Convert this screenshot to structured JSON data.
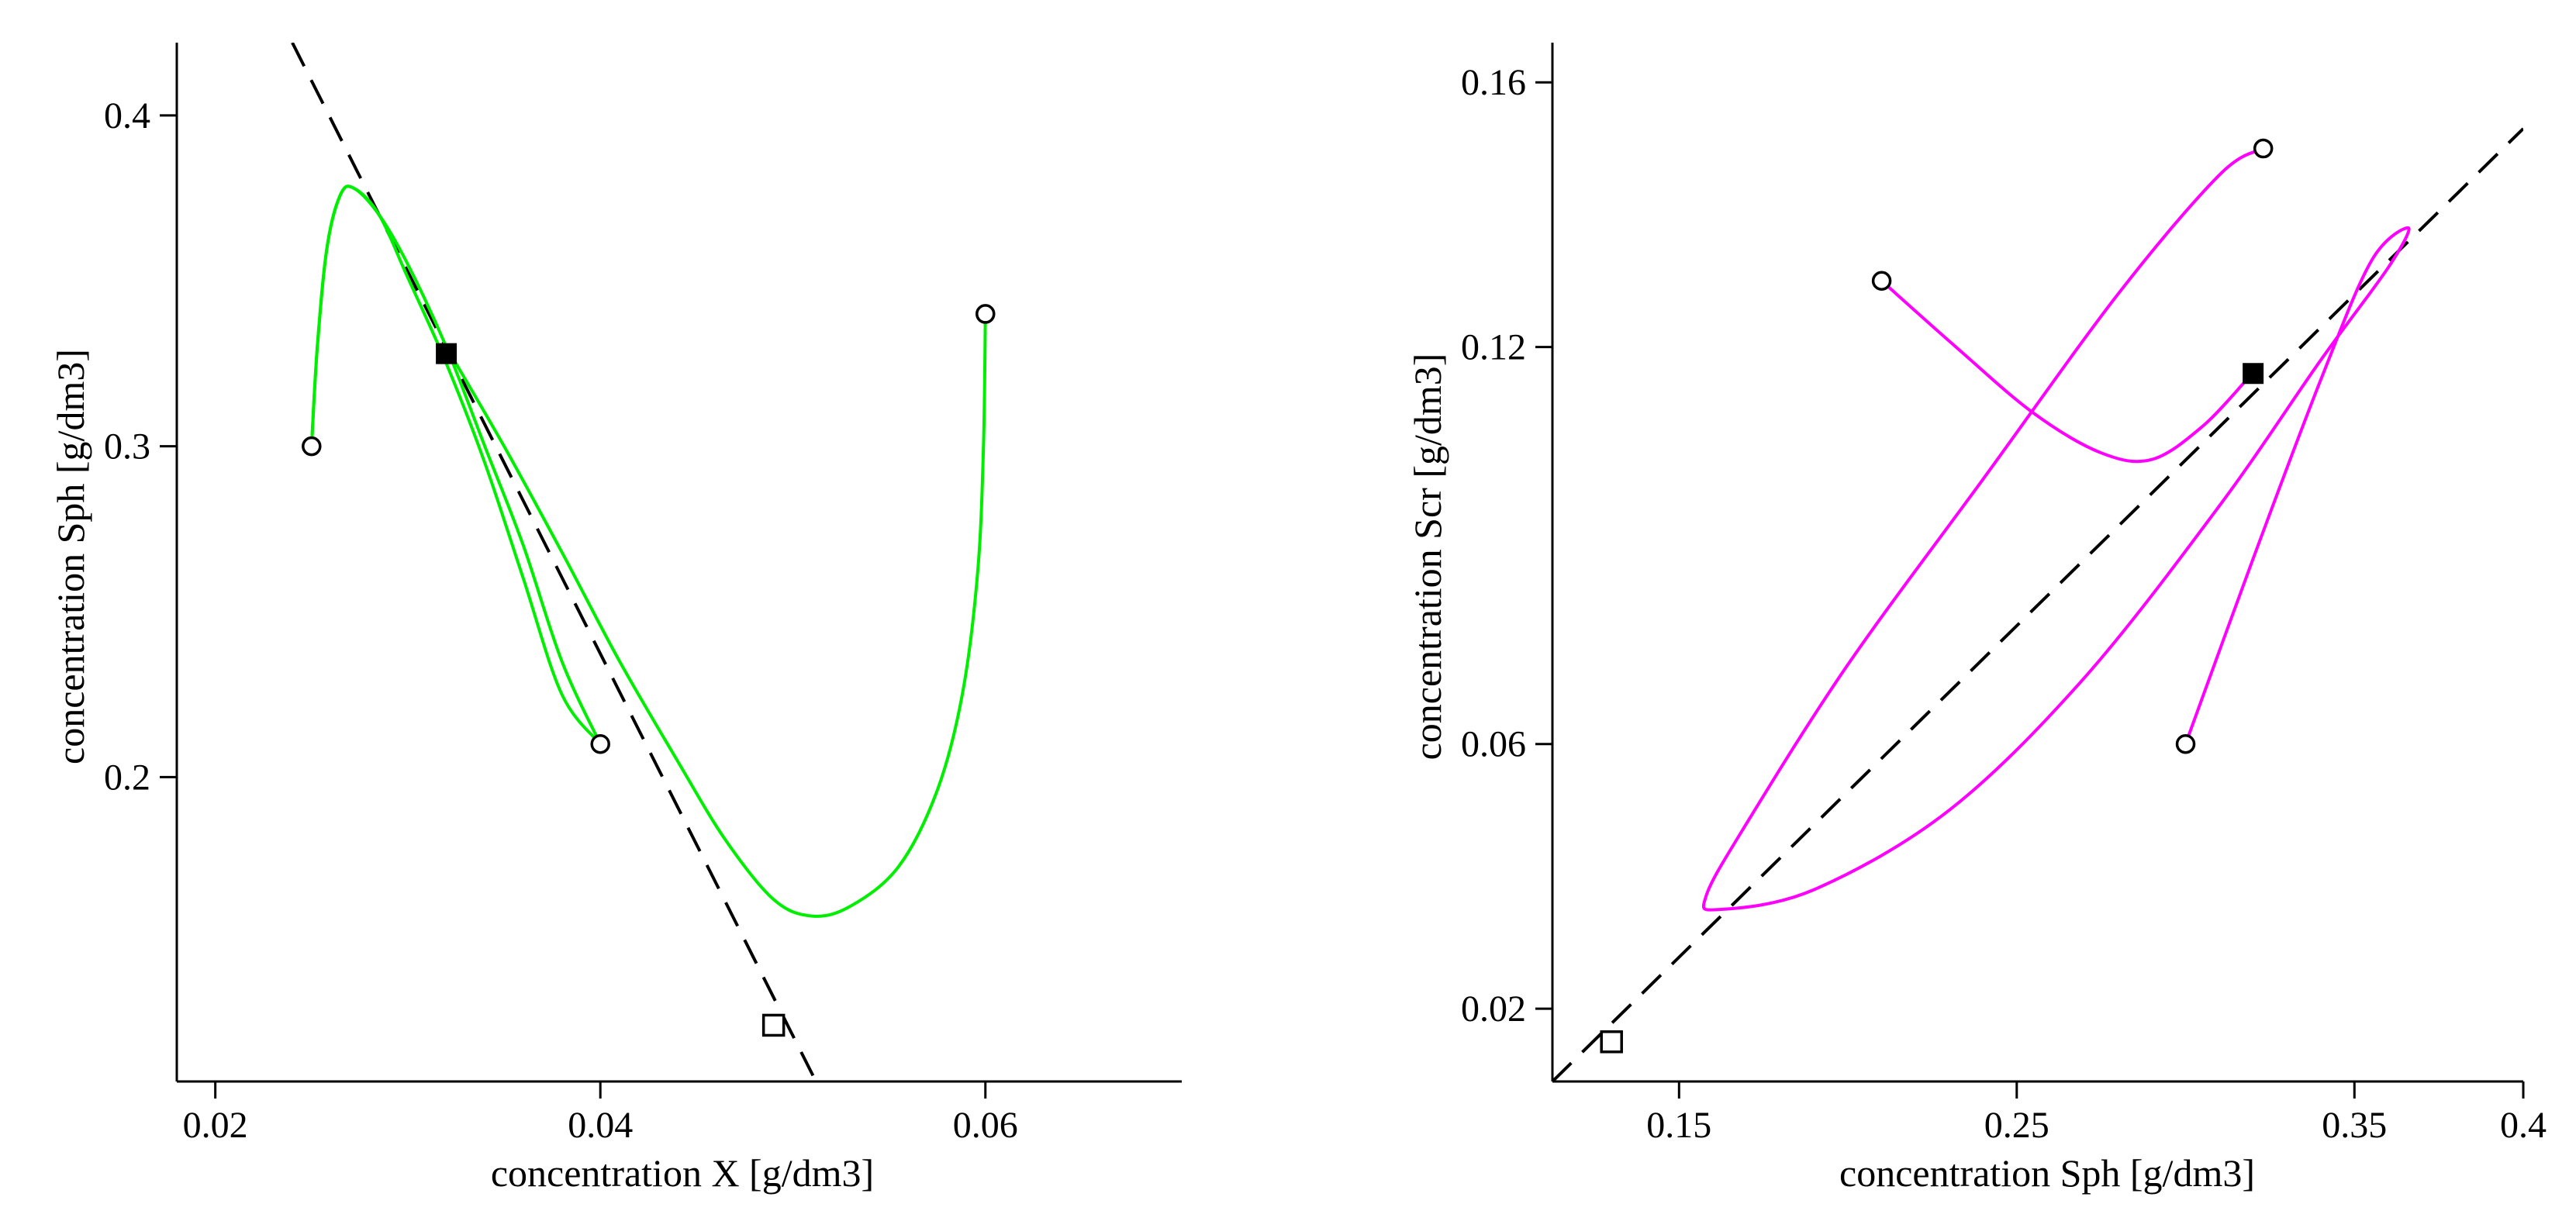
{
  "chart_data": [
    {
      "type": "line",
      "id": "left",
      "xlabel": "concentration X [g/dm3]",
      "ylabel": "concentration Sph [g/dm3]",
      "xlim": [
        0.018,
        0.0702
      ],
      "ylim": [
        0.108,
        0.422
      ],
      "xticks": [
        0.02,
        0.04,
        0.06
      ],
      "xtick_labels": [
        "0.02",
        "0.04",
        "0.06"
      ],
      "yticks": [
        0.2,
        0.3,
        0.4
      ],
      "ytick_labels": [
        "0.2",
        "0.3",
        "0.4"
      ],
      "trajectory_color": "#00ee00",
      "trajectories": [
        {
          "name": "traj-1",
          "points": [
            [
              0.025,
              0.3
            ],
            [
              0.0253,
              0.33
            ],
            [
              0.0258,
              0.36
            ],
            [
              0.0265,
              0.376
            ],
            [
              0.0272,
              0.378
            ],
            [
              0.0285,
              0.37
            ],
            [
              0.03,
              0.351
            ],
            [
              0.032,
              0.325
            ],
            [
              0.034,
              0.295
            ],
            [
              0.036,
              0.26
            ],
            [
              0.038,
              0.225
            ],
            [
              0.04,
              0.21
            ]
          ]
        },
        {
          "name": "traj-2",
          "points": [
            [
              0.04,
              0.21
            ],
            [
              0.038,
              0.235
            ],
            [
              0.036,
              0.27
            ],
            [
              0.034,
              0.3
            ],
            [
              0.032,
              0.33
            ],
            [
              0.03,
              0.355
            ],
            [
              0.0285,
              0.37
            ],
            [
              0.0272,
              0.378
            ],
            [
              0.0265,
              0.376
            ],
            [
              0.0258,
              0.36
            ],
            [
              0.0253,
              0.33
            ],
            [
              0.025,
              0.3
            ]
          ]
        },
        {
          "name": "traj-3",
          "points": [
            [
              0.06,
              0.34
            ],
            [
              0.0599,
              0.3
            ],
            [
              0.0596,
              0.262
            ],
            [
              0.0588,
              0.225
            ],
            [
              0.0575,
              0.196
            ],
            [
              0.0555,
              0.173
            ],
            [
              0.053,
              0.161
            ],
            [
              0.051,
              0.158
            ],
            [
              0.049,
              0.163
            ],
            [
              0.0465,
              0.181
            ],
            [
              0.044,
              0.205
            ],
            [
              0.041,
              0.235
            ],
            [
              0.038,
              0.268
            ],
            [
              0.035,
              0.3
            ],
            [
              0.032,
              0.33
            ]
          ]
        }
      ],
      "start_points": [
        [
          0.025,
          0.3
        ],
        [
          0.04,
          0.21
        ],
        [
          0.06,
          0.34
        ]
      ],
      "dashed_line": [
        [
          0.024,
          0.422
        ],
        [
          0.0512,
          0.108
        ]
      ],
      "steady_filled": [
        0.032,
        0.328
      ],
      "steady_open": [
        0.049,
        0.125
      ]
    },
    {
      "type": "line",
      "id": "right",
      "xlabel": "concentration Sph [g/dm3]",
      "ylabel": "concentration Scr [g/dm3]",
      "xlim": [
        0.1125,
        0.4
      ],
      "ylim": [
        0.009,
        0.166
      ],
      "xticks": [
        0.15,
        0.25,
        0.35,
        0.4
      ],
      "xtick_labels": [
        "0.15",
        "0.25",
        "0.35",
        "0.4"
      ],
      "yticks": [
        0.02,
        0.06,
        0.12,
        0.16
      ],
      "ytick_labels": [
        "0.02",
        "0.06",
        "0.12",
        "0.16"
      ],
      "trajectory_color": "#ff00ff",
      "trajectories": [
        {
          "name": "traj-1",
          "points": [
            [
              0.3,
              0.06
            ],
            [
              0.32,
              0.088
            ],
            [
              0.34,
              0.115
            ],
            [
              0.355,
              0.133
            ],
            [
              0.366,
              0.138
            ],
            [
              0.36,
              0.132
            ],
            [
              0.34,
              0.118
            ],
            [
              0.31,
              0.096
            ],
            [
              0.27,
              0.07
            ],
            [
              0.23,
              0.05
            ],
            [
              0.19,
              0.038
            ],
            [
              0.162,
              0.035
            ],
            [
              0.158,
              0.037
            ],
            [
              0.17,
              0.048
            ],
            [
              0.2,
              0.072
            ],
            [
              0.24,
              0.1
            ],
            [
              0.28,
              0.128
            ],
            [
              0.31,
              0.146
            ],
            [
              0.323,
              0.15
            ]
          ]
        },
        {
          "name": "traj-2",
          "points": [
            [
              0.21,
              0.13
            ],
            [
              0.232,
              0.12
            ],
            [
              0.255,
              0.11
            ],
            [
              0.275,
              0.104
            ],
            [
              0.29,
              0.103
            ],
            [
              0.305,
              0.108
            ],
            [
              0.318,
              0.115
            ]
          ]
        }
      ],
      "start_points": [
        [
          0.21,
          0.13
        ],
        [
          0.3,
          0.06
        ],
        [
          0.323,
          0.15
        ]
      ],
      "dashed_line": [
        [
          0.1125,
          0.009
        ],
        [
          0.4,
          0.153
        ]
      ],
      "steady_filled": [
        0.32,
        0.116
      ],
      "steady_open": [
        0.13,
        0.015
      ]
    }
  ]
}
